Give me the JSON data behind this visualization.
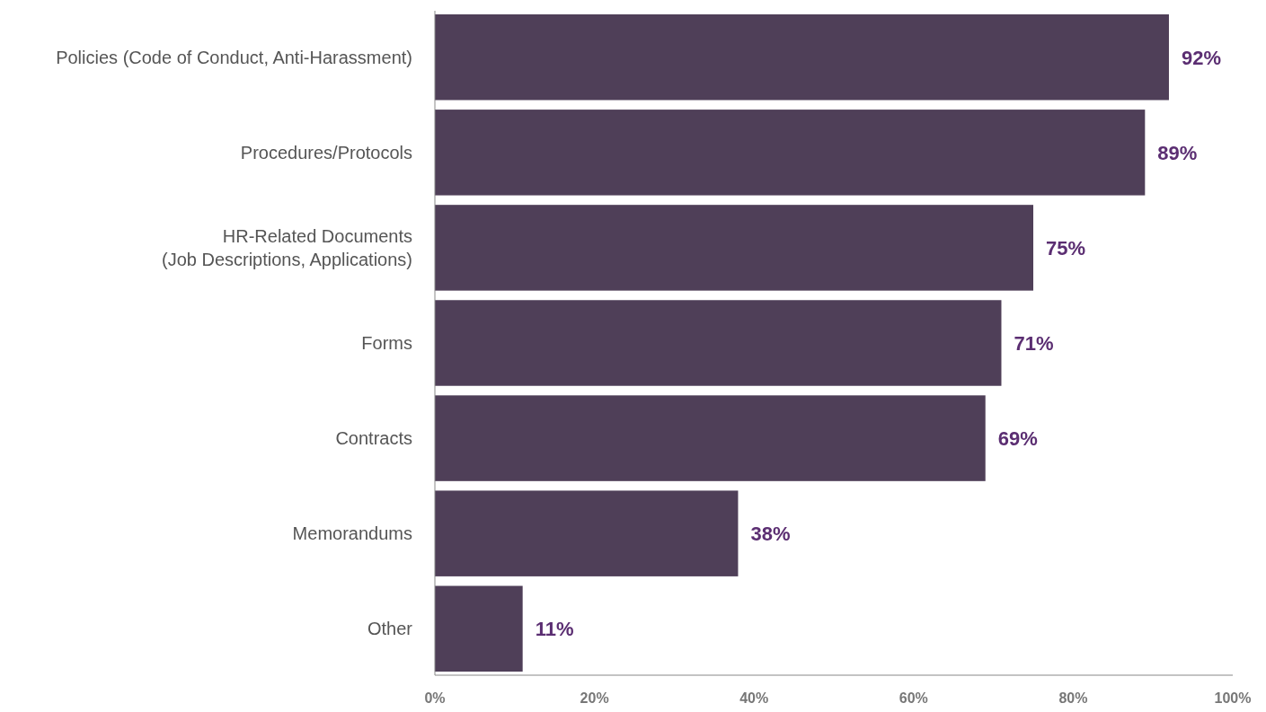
{
  "chart_data": {
    "type": "bar",
    "orientation": "horizontal",
    "categories": [
      "Policies (Code of Conduct, Anti-Harassment)",
      "Procedures/Protocols",
      "HR-Related Documents\n(Job Descriptions, Applications)",
      "Forms",
      "Contracts",
      "Memorandums",
      "Other"
    ],
    "values": [
      92,
      89,
      75,
      71,
      69,
      38,
      11
    ],
    "color": "#4f3f58",
    "value_labels": [
      "92%",
      "89%",
      "75%",
      "71%",
      "69%",
      "38%",
      "11%"
    ],
    "xlim": [
      0,
      100
    ],
    "xticks": [
      {
        "value": 0,
        "label": "0%"
      },
      {
        "value": 20,
        "label": "20%"
      },
      {
        "value": 40,
        "label": "40%"
      },
      {
        "value": 60,
        "label": "60%"
      },
      {
        "value": 80,
        "label": "80%"
      },
      {
        "value": 100,
        "label": "100%"
      }
    ],
    "grid": false
  }
}
